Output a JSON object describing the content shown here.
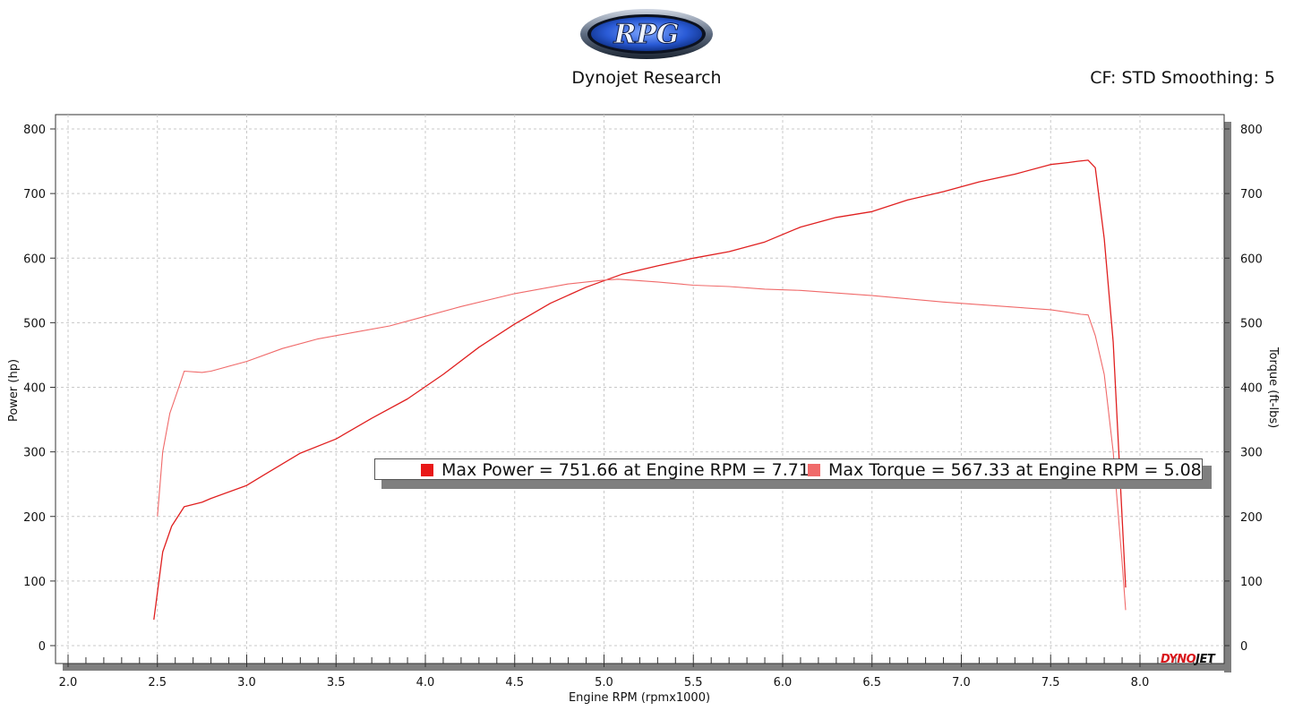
{
  "header": {
    "logo_text": "RPG",
    "title": "Dynojet Research",
    "cf_text": "CF: STD Smoothing: 5"
  },
  "brand": {
    "part1": "DYNO",
    "part2": "JET"
  },
  "legend": {
    "power_text": "Max Power = 751.66 at Engine RPM = 7.71",
    "torque_text": "Max Torque = 567.33 at Engine RPM = 5.08"
  },
  "colors": {
    "power": "#e02020",
    "torque": "#f06a6a",
    "grid": "#c8c8c8",
    "shadow": "#7f7f7f"
  },
  "chart_data": {
    "type": "line",
    "title": "Dynojet Research",
    "xlabel": "Engine RPM (rpmx1000)",
    "ylabel": "Power (hp)",
    "y2label": "Torque (ft-lbs)",
    "xlim": [
      2.0,
      8.5
    ],
    "ylim": [
      -30,
      820
    ],
    "y2lim": [
      -30,
      820
    ],
    "x_ticks": [
      2.0,
      2.5,
      3.0,
      3.5,
      4.0,
      4.5,
      5.0,
      5.5,
      6.0,
      6.5,
      7.0,
      7.5,
      8.0
    ],
    "x_tick_labels": [
      "2.0",
      "2.5",
      "3.0",
      "3.5",
      "4.0",
      "4.5",
      "5.0",
      "5.5",
      "6.0",
      "6.5",
      "7.0",
      "7.5",
      "8.0"
    ],
    "y_ticks": [
      0,
      100,
      200,
      300,
      400,
      500,
      600,
      700,
      800
    ],
    "y_tick_labels": [
      "0",
      "100",
      "200",
      "300",
      "400",
      "500",
      "600",
      "700",
      "800"
    ],
    "grid": true,
    "legend_position": "center-right",
    "series": [
      {
        "name": "Max Power = 751.66 at Engine RPM = 7.71",
        "axis": "left",
        "x": [
          2.48,
          2.53,
          2.58,
          2.65,
          2.75,
          2.8,
          3.0,
          3.1,
          3.3,
          3.5,
          3.7,
          3.9,
          4.1,
          4.3,
          4.5,
          4.7,
          4.9,
          5.1,
          5.3,
          5.5,
          5.7,
          5.9,
          6.1,
          6.3,
          6.5,
          6.7,
          6.9,
          7.1,
          7.3,
          7.5,
          7.6,
          7.65,
          7.71,
          7.75,
          7.8,
          7.85,
          7.9,
          7.92
        ],
        "values": [
          40,
          145,
          185,
          215,
          222,
          228,
          248,
          265,
          298,
          320,
          352,
          382,
          420,
          462,
          498,
          530,
          555,
          575,
          588,
          600,
          610,
          625,
          648,
          663,
          672,
          690,
          703,
          718,
          730,
          745,
          748,
          750,
          751.66,
          740,
          630,
          470,
          200,
          90
        ]
      },
      {
        "name": "Max Torque = 567.33 at Engine RPM = 5.08",
        "axis": "right",
        "x": [
          2.5,
          2.53,
          2.57,
          2.62,
          2.65,
          2.75,
          2.8,
          3.0,
          3.2,
          3.4,
          3.6,
          3.8,
          4.0,
          4.2,
          4.5,
          4.8,
          5.0,
          5.08,
          5.3,
          5.5,
          5.7,
          5.9,
          6.1,
          6.3,
          6.5,
          6.7,
          6.9,
          7.1,
          7.3,
          7.5,
          7.6,
          7.67,
          7.71,
          7.75,
          7.8,
          7.85,
          7.9,
          7.92
        ],
        "values": [
          200,
          300,
          360,
          400,
          425,
          423,
          425,
          440,
          460,
          475,
          485,
          495,
          510,
          525,
          545,
          560,
          566,
          567.33,
          563,
          558,
          556,
          552,
          550,
          546,
          542,
          537,
          532,
          528,
          524,
          520,
          516,
          513,
          512,
          480,
          420,
          300,
          130,
          55
        ]
      }
    ]
  }
}
